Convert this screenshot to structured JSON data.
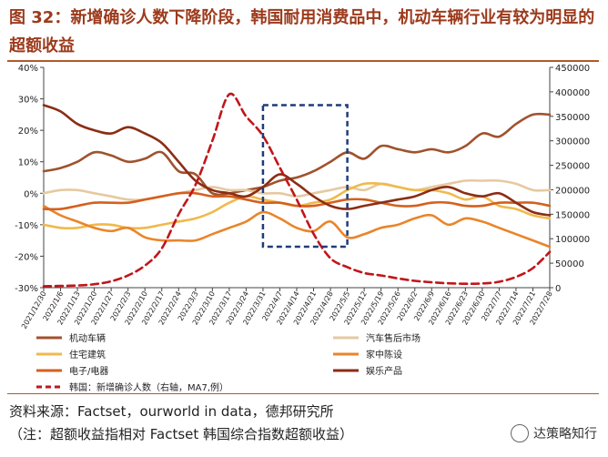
{
  "figure": {
    "title": "图 32：新增确诊人数下降阶段，韩国耐用消费品中，机动车辆行业有较为明显的超额收益",
    "source": "资料来源：Factset，ourworld in data，德邦研究所",
    "note": "（注：超额收益指相对 Factset 韩国综合指数超额收益）",
    "watermark": "达策略知行"
  },
  "chart_data": {
    "type": "line",
    "x": [
      "2021/12/30",
      "2022/1/6",
      "2022/1/13",
      "2022/1/20",
      "2022/1/27",
      "2022/2/3",
      "2022/2/10",
      "2022/2/17",
      "2022/2/24",
      "2022/3/3",
      "2022/3/10",
      "2022/3/17",
      "2022/3/24",
      "2022/3/31",
      "2022/4/7",
      "2022/4/14",
      "2022/4/21",
      "2022/4/28",
      "2022/5/5",
      "2022/5/12",
      "2022/5/19",
      "2022/5/26",
      "2022/6/2",
      "2022/6/9",
      "2022/6/16",
      "2022/6/23",
      "2022/6/30",
      "2022/7/7",
      "2022/7/14",
      "2022/7/21",
      "2022/7/28"
    ],
    "left_axis": {
      "min": -30,
      "max": 40,
      "step": 10,
      "unit": "%",
      "ticks": [
        "40%",
        "30%",
        "20%",
        "10%",
        "0%",
        "-10%",
        "-20%",
        "-30%"
      ]
    },
    "right_axis": {
      "min": 0,
      "max": 450000,
      "step": 50000,
      "ticks": [
        "450000",
        "400000",
        "350000",
        "300000",
        "250000",
        "200000",
        "150000",
        "100000",
        "50000",
        "0"
      ]
    },
    "highlight": {
      "from": "2022/3/31",
      "to": "2022/5/5",
      "y_from": -17,
      "y_to": 28
    },
    "series": [
      {
        "name": "机动车辆",
        "color": "#a0522d",
        "dash": false,
        "axis": "left",
        "values": [
          7,
          8,
          10,
          13,
          12,
          10,
          11,
          13,
          7,
          6,
          0,
          0,
          1,
          2,
          4,
          5,
          7,
          10,
          13,
          11,
          15,
          14,
          13,
          14,
          13,
          15,
          19,
          18,
          22,
          25,
          25
        ]
      },
      {
        "name": "汽车售后市场",
        "color": "#e6c9a0",
        "dash": false,
        "axis": "left",
        "values": [
          0,
          1,
          1,
          0,
          -1,
          -2,
          -2,
          -1,
          0,
          1,
          2,
          1,
          1,
          0,
          0,
          -1,
          0,
          1,
          2,
          1,
          3,
          2,
          1,
          2,
          3,
          4,
          4,
          4,
          3,
          1,
          1
        ]
      },
      {
        "name": "住宅建筑",
        "color": "#f0b94b",
        "dash": false,
        "axis": "left",
        "values": [
          -10,
          -11,
          -11,
          -10,
          -10,
          -11,
          -11,
          -10,
          -9,
          -8,
          -6,
          -3,
          -1,
          -2,
          -3,
          -4,
          -3,
          -2,
          1,
          3,
          3,
          2,
          1,
          1,
          0,
          -2,
          -1,
          -4,
          -5,
          -7,
          -8
        ]
      },
      {
        "name": "家中陈设",
        "color": "#e9852a",
        "dash": false,
        "axis": "left",
        "values": [
          -4,
          -7,
          -9,
          -11,
          -12,
          -11,
          -14,
          -15,
          -15,
          -15,
          -13,
          -11,
          -9,
          -6,
          -8,
          -11,
          -12,
          -9,
          -14,
          -13,
          -11,
          -10,
          -8,
          -7,
          -10,
          -8,
          -9,
          -11,
          -13,
          -15,
          -17
        ]
      },
      {
        "name": "电子/电器",
        "color": "#d4601f",
        "dash": false,
        "axis": "left",
        "values": [
          -5,
          -5,
          -4,
          -3,
          -3,
          -3,
          -2,
          -1,
          0,
          0,
          -1,
          -1,
          -2,
          -3,
          -3,
          -4,
          -4,
          -3,
          -2,
          -2,
          -3,
          -4,
          -4,
          -3,
          -3,
          -4,
          -4,
          -3,
          -3,
          -3,
          -4
        ]
      },
      {
        "name": "娱乐产品",
        "color": "#8b2e14",
        "dash": false,
        "axis": "left",
        "values": [
          28,
          26,
          22,
          20,
          19,
          21,
          19,
          16,
          10,
          4,
          1,
          0,
          -1,
          2,
          6,
          3,
          -1,
          -4,
          -5,
          -4,
          -3,
          -2,
          -1,
          1,
          2,
          0,
          -1,
          0,
          -3,
          -6,
          -7
        ]
      },
      {
        "name": "韩国：新增确诊人数（右轴，MA7,例）",
        "color": "#c0161b",
        "dash": true,
        "axis": "right",
        "values": [
          3000,
          3500,
          4500,
          7000,
          13000,
          25000,
          45000,
          80000,
          150000,
          210000,
          300000,
          395000,
          350000,
          310000,
          245000,
          180000,
          110000,
          60000,
          42000,
          30000,
          25000,
          19000,
          14000,
          11000,
          9000,
          8000,
          8500,
          12000,
          22000,
          40000,
          73000
        ]
      }
    ]
  }
}
